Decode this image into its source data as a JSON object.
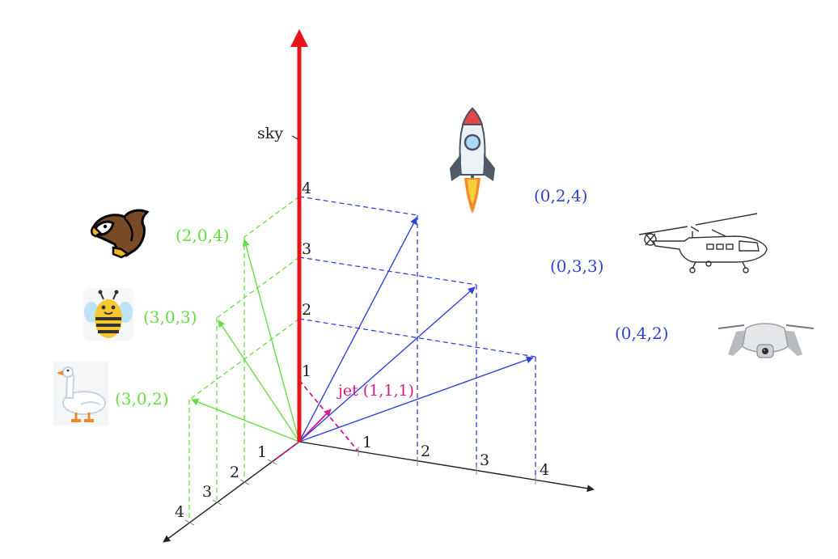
{
  "diagram": {
    "sky_label": "sky",
    "jet_label": "jet (1,1,1)",
    "vertical_ticks": [
      "1",
      "2",
      "3",
      "4"
    ],
    "right_axis_ticks": [
      "1",
      "2",
      "3",
      "4"
    ],
    "left_axis_ticks": [
      "1",
      "2",
      "3",
      "4"
    ],
    "green_vectors": [
      {
        "label": "(2,0,4)",
        "icon": "eagle-icon"
      },
      {
        "label": "(3,0,3)",
        "icon": "bee-icon"
      },
      {
        "label": "(3,0,2)",
        "icon": "goose-icon"
      }
    ],
    "blue_vectors": [
      {
        "label": "(0,2,4)",
        "icon": "rocket-icon"
      },
      {
        "label": "(0,3,3)",
        "icon": "helicopter-icon"
      },
      {
        "label": "(0,4,2)",
        "icon": "drone-icon"
      }
    ],
    "colors": {
      "sky_axis": "#e8141c",
      "green": "#66dd44",
      "blue": "#2f43d9",
      "jet": "#d61a8c",
      "axis": "#222222"
    }
  }
}
